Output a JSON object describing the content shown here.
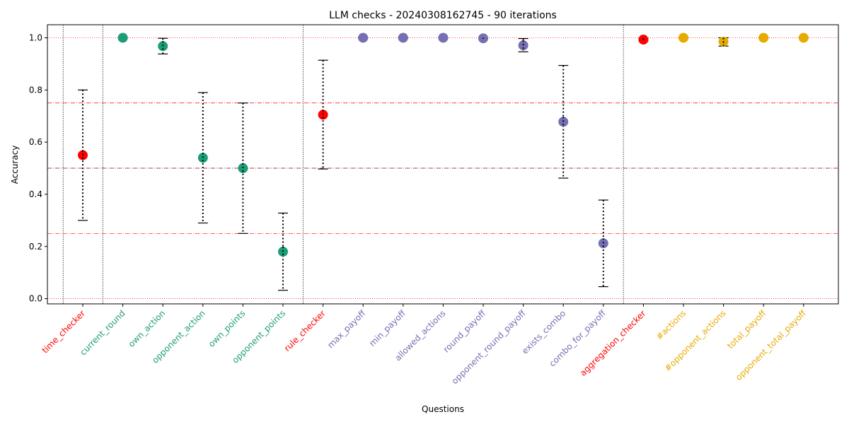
{
  "chart_data": {
    "type": "scatter",
    "title": "LLM checks - 20240308162745 - 90 iterations",
    "xlabel": "Questions",
    "ylabel": "Accuracy",
    "ylim": [
      -0.02,
      1.05
    ],
    "yticks": [
      "0.0",
      "0.2",
      "0.4",
      "0.6",
      "0.8",
      "1.0"
    ],
    "grid": false,
    "reference_lines": [
      {
        "y": 0.0,
        "color": "#ff0000",
        "style": "dotted"
      },
      {
        "y": 0.25,
        "color": "#ff0000",
        "style": "dashdot"
      },
      {
        "y": 0.5,
        "color": "#8b0000",
        "style": "dashdot"
      },
      {
        "y": 0.75,
        "color": "#ff0000",
        "style": "dashdot"
      },
      {
        "y": 1.0,
        "color": "#ff0000",
        "style": "dotted"
      }
    ],
    "group_colors": {
      "checker": "#ff0000",
      "time": "#1b9e77",
      "rule": "#7570b3",
      "aggregation": "#e6ab02"
    },
    "separators_after": [
      "time_checker",
      "opponent_points",
      "combo_for_payoff"
    ],
    "points": [
      {
        "label": "time_checker",
        "group": "checker",
        "y": 0.55,
        "lo": 0.3,
        "hi": 0.8
      },
      {
        "label": "current_round",
        "group": "time",
        "y": 1.0,
        "lo": 1.0,
        "hi": 1.0
      },
      {
        "label": "own_action",
        "group": "time",
        "y": 0.968,
        "lo": 0.938,
        "hi": 0.998
      },
      {
        "label": "opponent_action",
        "group": "time",
        "y": 0.54,
        "lo": 0.29,
        "hi": 0.79
      },
      {
        "label": "own_points",
        "group": "time",
        "y": 0.5,
        "lo": 0.25,
        "hi": 0.75
      },
      {
        "label": "opponent_points",
        "group": "time",
        "y": 0.18,
        "lo": 0.032,
        "hi": 0.328
      },
      {
        "label": "rule_checker",
        "group": "checker",
        "y": 0.705,
        "lo": 0.497,
        "hi": 0.914
      },
      {
        "label": "max_payoff",
        "group": "rule",
        "y": 1.0,
        "lo": 1.0,
        "hi": 1.0
      },
      {
        "label": "min_payoff",
        "group": "rule",
        "y": 1.0,
        "lo": 1.0,
        "hi": 1.0
      },
      {
        "label": "allowed_actions",
        "group": "rule",
        "y": 1.0,
        "lo": 1.0,
        "hi": 1.0
      },
      {
        "label": "round_payoff",
        "group": "rule",
        "y": 0.998,
        "lo": 0.996,
        "hi": 1.0
      },
      {
        "label": "opponent_round_payoff",
        "group": "rule",
        "y": 0.971,
        "lo": 0.946,
        "hi": 0.997
      },
      {
        "label": "exists_combo",
        "group": "rule",
        "y": 0.678,
        "lo": 0.462,
        "hi": 0.894
      },
      {
        "label": "combo_for_payoff",
        "group": "rule",
        "y": 0.212,
        "lo": 0.046,
        "hi": 0.378
      },
      {
        "label": "aggregation_checker",
        "group": "checker",
        "y": 0.993,
        "lo": 0.988,
        "hi": 0.998
      },
      {
        "label": "#actions",
        "group": "aggregation",
        "y": 1.0,
        "lo": 1.0,
        "hi": 1.0
      },
      {
        "label": "#opponent_actions",
        "group": "aggregation",
        "y": 0.985,
        "lo": 0.968,
        "hi": 1.0
      },
      {
        "label": "total_payoff",
        "group": "aggregation",
        "y": 1.0,
        "lo": 1.0,
        "hi": 1.0
      },
      {
        "label": "opponent_total_payoff",
        "group": "aggregation",
        "y": 1.0,
        "lo": 1.0,
        "hi": 1.0
      }
    ]
  }
}
